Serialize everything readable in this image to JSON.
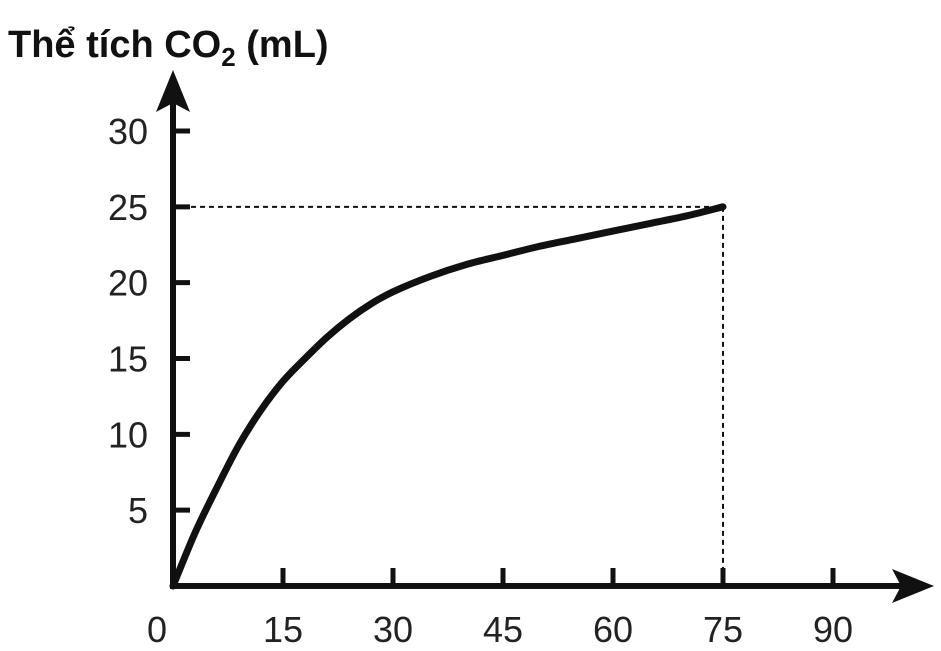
{
  "chart_data": {
    "type": "line",
    "title": "",
    "ylabel": {
      "prefix": "Thể tích CO",
      "subscript": "2",
      "suffix": " (mL)"
    },
    "xlabel": "",
    "x_ticks": [
      "0",
      "15",
      "30",
      "45",
      "60",
      "75",
      "90"
    ],
    "y_ticks": [
      "5",
      "10",
      "15",
      "20",
      "25",
      "30"
    ],
    "xlim": [
      0,
      90
    ],
    "ylim": [
      0,
      30
    ],
    "grid": false,
    "series": [
      {
        "x": [
          0,
          3,
          6,
          9,
          12,
          15,
          18,
          21,
          24,
          27,
          30,
          35,
          40,
          45,
          50,
          55,
          60,
          65,
          70,
          75
        ],
        "y": [
          0,
          3.5,
          6.5,
          9.3,
          11.6,
          13.5,
          15.0,
          16.4,
          17.6,
          18.6,
          19.4,
          20.4,
          21.2,
          21.8,
          22.4,
          22.9,
          23.4,
          23.9,
          24.4,
          25.0
        ]
      }
    ],
    "guide": {
      "x": 75,
      "y": 25
    }
  }
}
